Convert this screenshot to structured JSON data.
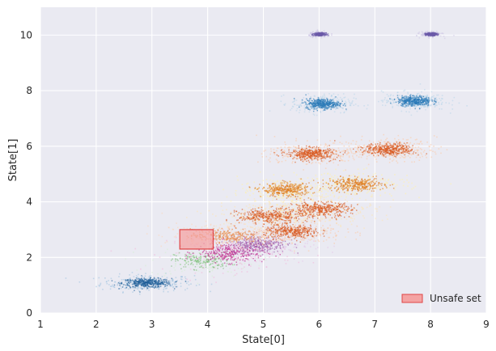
{
  "chart_data": {
    "type": "scatter",
    "xlabel": "State[0]",
    "ylabel": "State[1]",
    "xlim": [
      1,
      9
    ],
    "ylim": [
      0,
      11
    ],
    "x_ticks": [
      "1",
      "2",
      "3",
      "4",
      "5",
      "6",
      "7",
      "8",
      "9"
    ],
    "y_ticks": [
      "0",
      "2",
      "4",
      "6",
      "8",
      "10"
    ],
    "grid": true,
    "legend_position": "lower-right",
    "legend": [
      {
        "label": "Unsafe set",
        "fill": "#f4a3a3",
        "edge": "#e04444"
      }
    ],
    "unsafe_set": {
      "x": [
        3.5,
        4.1
      ],
      "y": [
        2.3,
        3.0
      ]
    },
    "clusters": [
      {
        "x": 2.9,
        "y": 1.1,
        "sx": 0.22,
        "sy": 0.08,
        "color": "#1f5f9a",
        "halo": "#9ec3e0",
        "strength": 1.0
      },
      {
        "x": 3.9,
        "y": 1.9,
        "sx": 0.25,
        "sy": 0.15,
        "color": "#7fbf7b",
        "halo": "#d6efd3",
        "strength": 0.5
      },
      {
        "x": 4.4,
        "y": 2.2,
        "sx": 0.3,
        "sy": 0.18,
        "color": "#c0208a",
        "halo": "#f2b6da",
        "strength": 0.8
      },
      {
        "x": 4.9,
        "y": 2.5,
        "sx": 0.25,
        "sy": 0.15,
        "color": "#9c58a8",
        "halo": "#e3c7ea",
        "strength": 0.8
      },
      {
        "x": 4.3,
        "y": 2.8,
        "sx": 0.3,
        "sy": 0.12,
        "color": "#e88a4a",
        "halo": "#fbd6b8",
        "strength": 0.7
      },
      {
        "x": 5.5,
        "y": 2.95,
        "sx": 0.25,
        "sy": 0.12,
        "color": "#d9561c",
        "halo": "#fbc9a6",
        "strength": 0.9
      },
      {
        "x": 5.1,
        "y": 3.5,
        "sx": 0.28,
        "sy": 0.13,
        "color": "#d9561c",
        "halo": "#fde4b0",
        "strength": 1.0
      },
      {
        "x": 6.0,
        "y": 3.75,
        "sx": 0.28,
        "sy": 0.13,
        "color": "#d9561c",
        "halo": "#fde4b0",
        "strength": 1.0
      },
      {
        "x": 5.4,
        "y": 4.45,
        "sx": 0.22,
        "sy": 0.12,
        "color": "#e07b1a",
        "halo": "#fff1a8",
        "strength": 0.9
      },
      {
        "x": 6.65,
        "y": 4.65,
        "sx": 0.25,
        "sy": 0.12,
        "color": "#e07b1a",
        "halo": "#fff1a8",
        "strength": 0.9
      },
      {
        "x": 5.85,
        "y": 5.75,
        "sx": 0.22,
        "sy": 0.11,
        "color": "#d9561c",
        "halo": "#fbc9a6",
        "strength": 1.0
      },
      {
        "x": 7.25,
        "y": 5.9,
        "sx": 0.22,
        "sy": 0.11,
        "color": "#d9561c",
        "halo": "#fbc9a6",
        "strength": 1.0
      },
      {
        "x": 6.05,
        "y": 7.55,
        "sx": 0.15,
        "sy": 0.09,
        "color": "#2a7ab8",
        "halo": "#b8d5ea",
        "strength": 1.0
      },
      {
        "x": 7.7,
        "y": 7.65,
        "sx": 0.15,
        "sy": 0.09,
        "color": "#2a7ab8",
        "halo": "#b8d5ea",
        "strength": 1.0
      },
      {
        "x": 6.0,
        "y": 10.05,
        "sx": 0.05,
        "sy": 0.025,
        "color": "#6a5aa8",
        "halo": "#cdc7e6",
        "strength": 0.7
      },
      {
        "x": 8.0,
        "y": 10.05,
        "sx": 0.05,
        "sy": 0.025,
        "color": "#6a5aa8",
        "halo": "#cdc7e6",
        "strength": 0.7
      }
    ]
  }
}
